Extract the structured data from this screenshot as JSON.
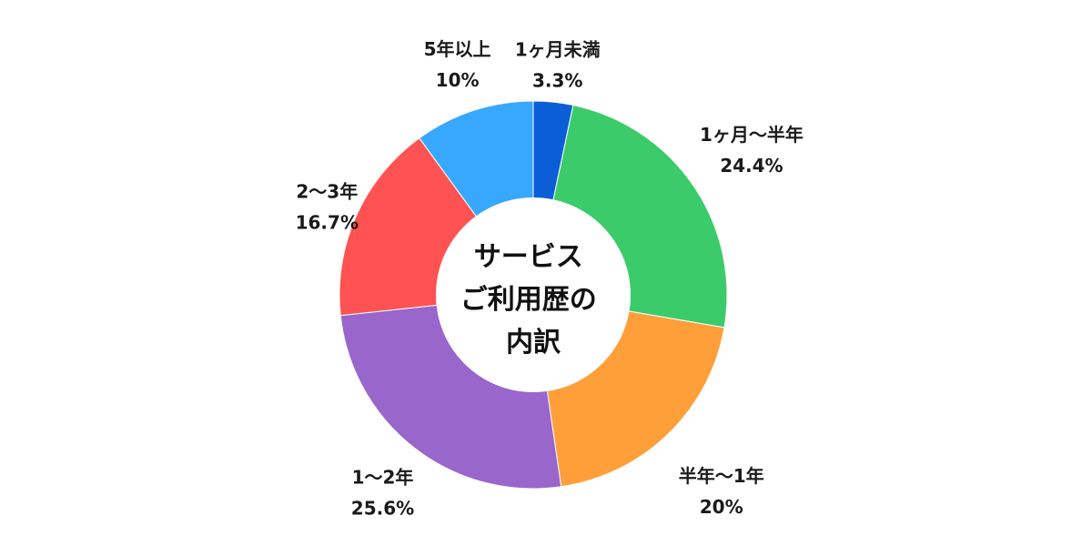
{
  "chart_data": {
    "type": "pie",
    "variant": "donut",
    "center_text": [
      "サービス",
      "ご利用歴の",
      "内訳"
    ],
    "categories": [
      "1ヶ月未満",
      "1ヶ月～半年",
      "半年～1年",
      "1～2年",
      "2～3年",
      "5年以上"
    ],
    "values": [
      3.3,
      24.4,
      20,
      25.6,
      16.7,
      10
    ],
    "value_labels": [
      "3.3%",
      "24.4%",
      "20%",
      "25.6%",
      "16.7%",
      "10%"
    ],
    "colors": [
      "#0b5ed7",
      "#3ccb6a",
      "#ff9f3a",
      "#9966cc",
      "#ff5252",
      "#38a8ff"
    ],
    "legend": "none",
    "start": "top",
    "direction": "clockwise"
  }
}
